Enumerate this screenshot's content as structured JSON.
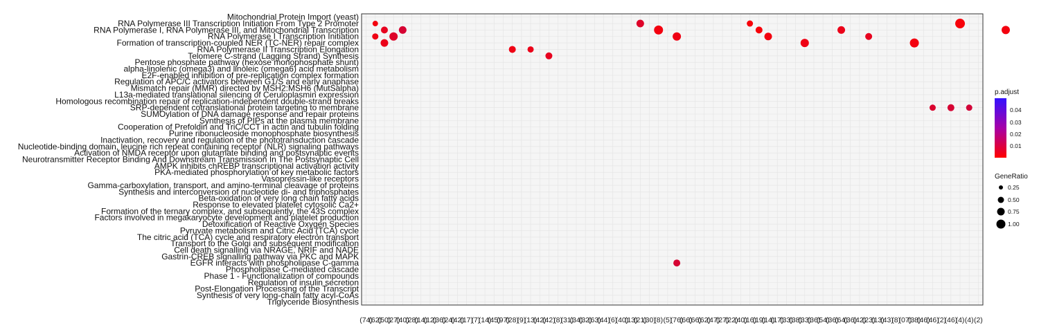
{
  "chart_data": {
    "type": "scatter",
    "title": "",
    "xlabel": "",
    "ylabel": "",
    "grid": true,
    "legend_position": "right",
    "y_labels": [
      "Mitochondrial Protein Import (yeast)",
      "RNA Polymerase III Transcription Initiation From Type 2 Promoter",
      "RNA Polymerase I, RNA Polymerase III, and Mitochondrial Transcription",
      "RNA Polymerase I Transcription Initiation",
      "Formation of transcription-coupled NER (TC-NER) repair complex",
      "RNA Polymerase II Transcription Elongation",
      "Telomere C-strand (Lagging Strand) Synthesis",
      "Pentose phosphate pathway (hexose monophosphate shunt)",
      "alpha-linolenic (omega3) and linoleic (omega6) acid metabolism",
      "E2F-enabled inhibition of pre-replication complex formation",
      "Regulation of APC/C activators between G1/S and early anaphase",
      "Mismatch repair (MMR) directed by MSH2:MSH6 (MutSalpha)",
      "L13a-mediated translational silencing of Ceruloplasmin expression",
      "Homologous recombination repair of replication-independent double-strand breaks",
      "SRP-dependent cotranslational protein targeting to membrane",
      "SUMOylation of DNA damage response and repair proteins",
      "Synthesis of PIPs at the plasma membrane",
      "Cooperation of Prefoldin and TriC/CCT in actin and tubulin folding",
      "Purine ribonucleoside monophosphate biosynthesis",
      "Inactivation, recovery and regulation of the phototransduction cascade",
      "Nucleotide-binding domain, leucine rich repeat containing receptor (NLR) signaling pathways",
      "Activation of NMDA receptor upon glutamate binding and postsynaptic events",
      "Neurotransmitter Receptor Binding And Downstream Transmission In The Postsynaptic Cell",
      "AMPK inhibits chREBP transcriptional activation activity",
      "PKA-mediated phosphorylation of key metabolic factors",
      "Vasopressin-like receptors",
      "Gamma-carboxylation, transport, and amino-terminal cleavage of proteins",
      "Synthesis and interconversion of nucleotide di- and triphosphates",
      "Beta-oxidation of very long chain fatty acids",
      "Response to elevated platelet cytosolic Ca2+",
      "Formation of the ternary complex, and subsequently, the 43S complex",
      "Factors involved in megakaryocyte development and platelet production",
      "Detoxification of Reactive Oxygen Species",
      "Pyruvate metabolism and Citric Acid (TCA) cycle",
      "The citric acid (TCA) cycle and respiratory electron transport",
      "Transport to the Golgi and subsequent modification",
      "Cell death signalling via NRAGE, NRIF and NADE",
      "Gastrin-CREB signalling pathway via PKC and MAPK",
      "EGFR interacts with phospholipase C-gamma",
      "Phospholipase C-mediated cascade",
      "Phase 1 - Functionalization of compounds",
      "Regulation of insulin secretion",
      "Post-Elongation Processing of the Transcript",
      "Synthesis of very long-chain fatty acyl-CoAs",
      "Triglyceride Biosynthesis"
    ],
    "x_labels": [
      "(74)",
      "(62)",
      "(50)",
      "(27)",
      "(40)",
      "(28)",
      "(14)",
      "(12)",
      "(36)",
      "(24)",
      "(42)",
      "(17)",
      "(7)",
      "(14)",
      "(45)",
      "(97)",
      "(28)",
      "(9)",
      "(13)",
      "(42)",
      "(42)",
      "(8)",
      "(31)",
      "(34)",
      "(32)",
      "(63)",
      "(44)",
      "(6)",
      "(40)",
      "(13)",
      "(21)",
      "(30)",
      "(8)",
      "(5)",
      "(76)",
      "(66)",
      "(66)",
      "(62)",
      "(47)",
      "(27)",
      "(22)",
      "(40)",
      "(16)",
      "(19)",
      "(14)",
      "(17)",
      "(33)",
      "(38)",
      "(33)",
      "(36)",
      "(54)",
      "(36)",
      "(64)",
      "(36)",
      "(42)",
      "(23)",
      "(13)",
      "(43)",
      "(8)",
      "(07)",
      "(38)",
      "(46)",
      "(46)",
      "(2)",
      "(46)",
      "(4)",
      "(4)",
      "(2)"
    ],
    "color_scale": {
      "title": "p.adjust",
      "low_color": "#ff0000",
      "high_color": "#3311ff",
      "ticks": [
        "0.04",
        "0.03",
        "0.02",
        "0.01"
      ]
    },
    "size_scale": {
      "title": "GeneRatio",
      "ticks": [
        "0.25",
        "0.50",
        "0.75",
        "1.00"
      ]
    },
    "series": [
      {
        "name": "red",
        "x": [
          1,
          1,
          2,
          2,
          3,
          4,
          16,
          18,
          20,
          30,
          32,
          34,
          42,
          43,
          44,
          48,
          52,
          55,
          60,
          65,
          70,
          62,
          64,
          66,
          34
        ],
        "y": [
          1,
          3,
          2,
          4,
          3,
          2,
          5,
          5,
          6,
          1,
          2,
          3,
          1,
          2,
          3,
          4,
          2,
          3,
          4,
          1,
          2,
          14,
          14,
          14,
          38
        ],
        "p": [
          0.003,
          0.004,
          0.006,
          0.005,
          0.008,
          0.01,
          0.004,
          0.005,
          0.006,
          0.008,
          0.003,
          0.004,
          0.002,
          0.002,
          0.003,
          0.004,
          0.005,
          0.006,
          0.003,
          0.002,
          0.003,
          0.009,
          0.01,
          0.011,
          0.01
        ],
        "r": [
          0.3,
          0.4,
          0.5,
          0.6,
          0.7,
          0.6,
          0.5,
          0.4,
          0.5,
          0.6,
          0.8,
          0.7,
          0.4,
          0.5,
          0.6,
          0.7,
          0.6,
          0.5,
          0.8,
          0.9,
          0.7,
          0.4,
          0.5,
          0.4,
          0.5
        ]
      }
    ]
  }
}
